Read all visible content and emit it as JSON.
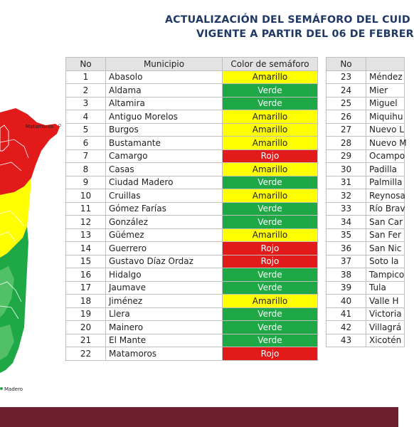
{
  "title": {
    "line1": "ACTUALIZACIÓN DEL SEMÁFORO DEL CUID",
    "line2": "VIGENTE A PARTIR DEL 06 DE FEBRER"
  },
  "map": {
    "labels": [
      "Matamoros",
      "Madero"
    ]
  },
  "colors": {
    "Amarillo": "#ffff00",
    "Verde": "#1fa846",
    "Rojo": "#e31a1a",
    "header": "#e3e3e3",
    "footer": "#6d1f2f"
  },
  "table1": {
    "headers": [
      "No",
      "Municipio",
      "Color de semáforo"
    ],
    "rows": [
      {
        "no": "1",
        "municipio": "Abasolo",
        "color": "Amarillo"
      },
      {
        "no": "2",
        "municipio": "Aldama",
        "color": "Verde"
      },
      {
        "no": "3",
        "municipio": "Altamira",
        "color": "Verde"
      },
      {
        "no": "4",
        "municipio": "Antiguo Morelos",
        "color": "Amarillo"
      },
      {
        "no": "5",
        "municipio": "Burgos",
        "color": "Amarillo"
      },
      {
        "no": "6",
        "municipio": "Bustamante",
        "color": "Amarillo"
      },
      {
        "no": "7",
        "municipio": "Camargo",
        "color": "Rojo"
      },
      {
        "no": "8",
        "municipio": "Casas",
        "color": "Amarillo"
      },
      {
        "no": "9",
        "municipio": "Ciudad Madero",
        "color": "Verde"
      },
      {
        "no": "10",
        "municipio": "Cruillas",
        "color": "Amarillo"
      },
      {
        "no": "11",
        "municipio": "Gómez Farías",
        "color": "Verde"
      },
      {
        "no": "12",
        "municipio": "González",
        "color": "Verde"
      },
      {
        "no": "13",
        "municipio": "Güémez",
        "color": "Amarillo"
      },
      {
        "no": "14",
        "municipio": "Guerrero",
        "color": "Rojo"
      },
      {
        "no": "15",
        "municipio": "Gustavo Díaz Ordaz",
        "color": "Rojo"
      },
      {
        "no": "16",
        "municipio": "Hidalgo",
        "color": "Verde"
      },
      {
        "no": "17",
        "municipio": "Jaumave",
        "color": "Verde"
      },
      {
        "no": "18",
        "municipio": "Jiménez",
        "color": "Amarillo"
      },
      {
        "no": "19",
        "municipio": "Llera",
        "color": "Verde"
      },
      {
        "no": "20",
        "municipio": "Mainero",
        "color": "Verde"
      },
      {
        "no": "21",
        "municipio": "El Mante",
        "color": "Verde"
      },
      {
        "no": "22",
        "municipio": "Matamoros",
        "color": "Rojo"
      }
    ]
  },
  "table2": {
    "headers": [
      "No",
      ""
    ],
    "rows": [
      {
        "no": "23",
        "municipio": "Méndez"
      },
      {
        "no": "24",
        "municipio": "Mier"
      },
      {
        "no": "25",
        "municipio": "Miguel"
      },
      {
        "no": "26",
        "municipio": "Miquihu"
      },
      {
        "no": "27",
        "municipio": "Nuevo L"
      },
      {
        "no": "28",
        "municipio": "Nuevo M"
      },
      {
        "no": "29",
        "municipio": "Ocampo"
      },
      {
        "no": "30",
        "municipio": "Padilla"
      },
      {
        "no": "31",
        "municipio": "Palmilla"
      },
      {
        "no": "32",
        "municipio": "Reynosa"
      },
      {
        "no": "33",
        "municipio": "Río Brav"
      },
      {
        "no": "34",
        "municipio": "San Car"
      },
      {
        "no": "35",
        "municipio": "San Fer"
      },
      {
        "no": "36",
        "municipio": "San Nic"
      },
      {
        "no": "37",
        "municipio": "Soto la"
      },
      {
        "no": "38",
        "municipio": "Tampico"
      },
      {
        "no": "39",
        "municipio": "Tula"
      },
      {
        "no": "40",
        "municipio": "Valle H"
      },
      {
        "no": "41",
        "municipio": "Victoria"
      },
      {
        "no": "42",
        "municipio": "Villagrá"
      },
      {
        "no": "43",
        "municipio": "Xicotén"
      }
    ]
  }
}
